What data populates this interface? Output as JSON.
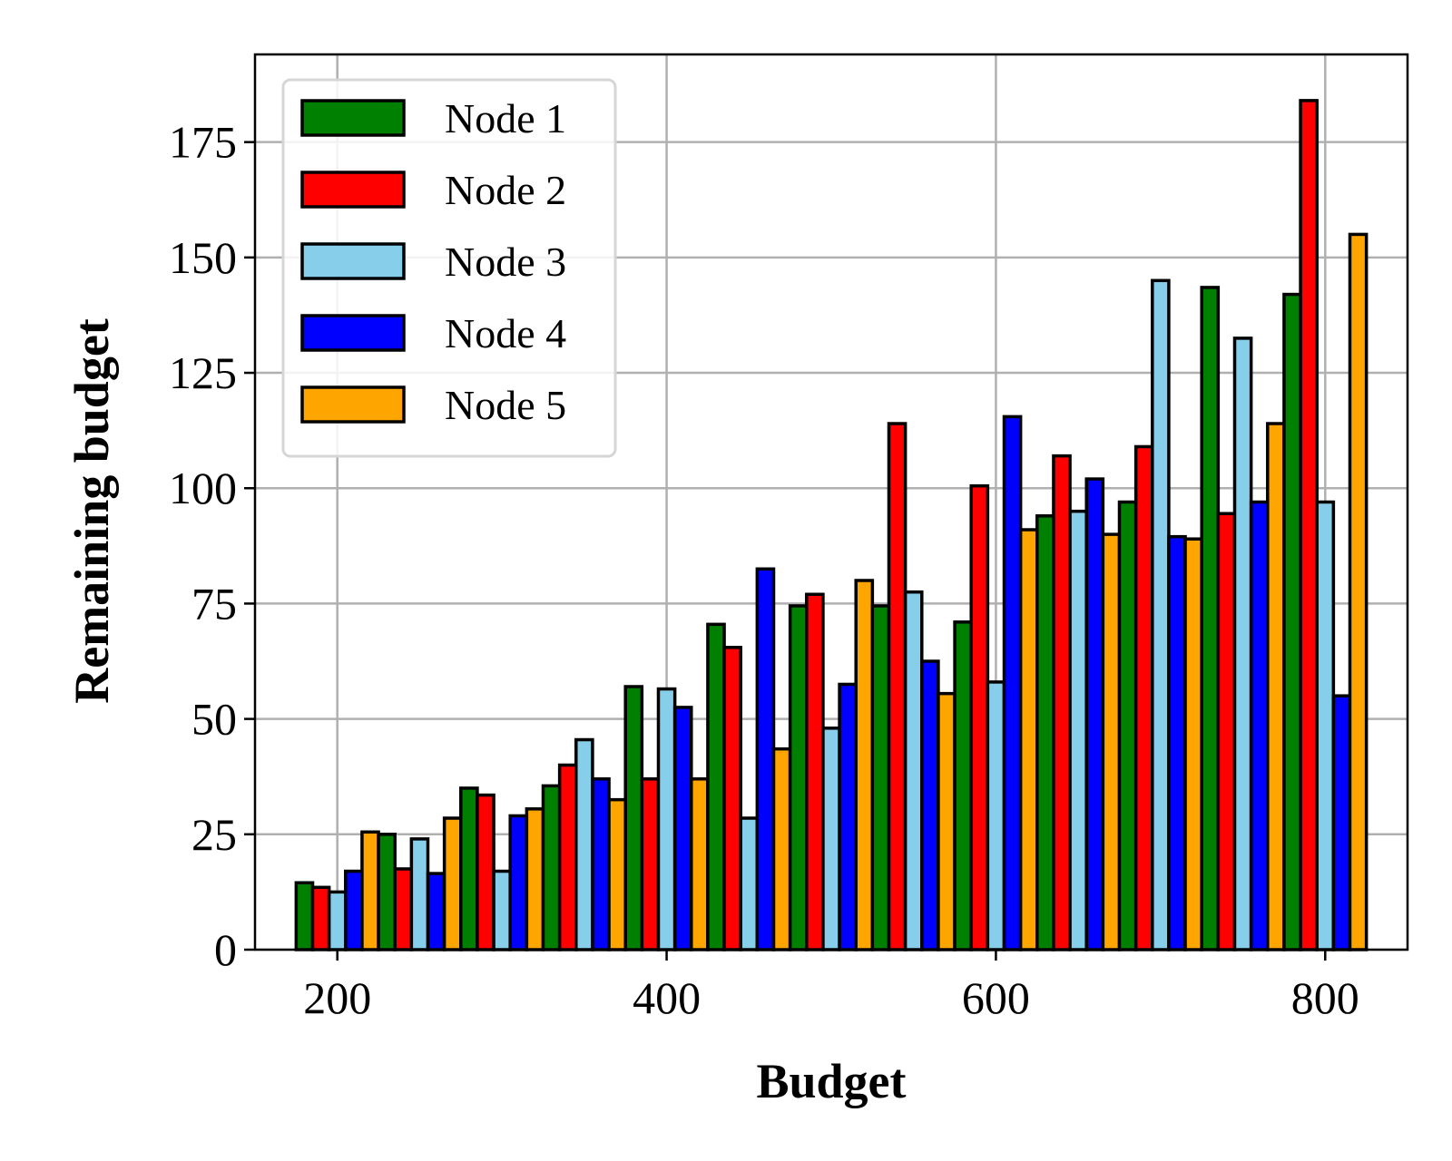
{
  "chart_data": {
    "type": "bar",
    "xlabel": "Budget",
    "ylabel": "Remaining budget",
    "x": [
      200,
      250,
      300,
      350,
      400,
      450,
      500,
      550,
      600,
      650,
      700,
      750,
      800
    ],
    "xticks": [
      200,
      400,
      600,
      800
    ],
    "yticks": [
      0,
      25,
      50,
      75,
      100,
      125,
      150,
      175
    ],
    "xlim": [
      150,
      850
    ],
    "ylim": [
      0,
      194
    ],
    "grid": true,
    "legend_position": "top-left",
    "series": [
      {
        "name": "Node 1",
        "color": "#008000",
        "values": [
          14.5,
          25,
          35,
          35.5,
          57,
          70.5,
          74.5,
          74.5,
          71,
          94,
          97,
          143.5,
          142
        ]
      },
      {
        "name": "Node 2",
        "color": "#ff0000",
        "values": [
          13.5,
          17.5,
          33.5,
          40,
          37,
          65.5,
          77,
          114,
          100.5,
          107,
          109,
          94.5,
          184
        ]
      },
      {
        "name": "Node 3",
        "color": "#87ceeb",
        "values": [
          12.5,
          24,
          17,
          45.5,
          56.5,
          28.5,
          48,
          77.5,
          58,
          95,
          145,
          132.5,
          97
        ]
      },
      {
        "name": "Node 4",
        "color": "#0000ff",
        "values": [
          17,
          16.5,
          29,
          37,
          52.5,
          82.5,
          57.5,
          62.5,
          115.5,
          102,
          89.5,
          97,
          55
        ]
      },
      {
        "name": "Node 5",
        "color": "#ffa500",
        "values": [
          25.5,
          28.5,
          30.5,
          32.5,
          37,
          43.5,
          80,
          55.5,
          91,
          90,
          89,
          114,
          155
        ]
      }
    ]
  }
}
